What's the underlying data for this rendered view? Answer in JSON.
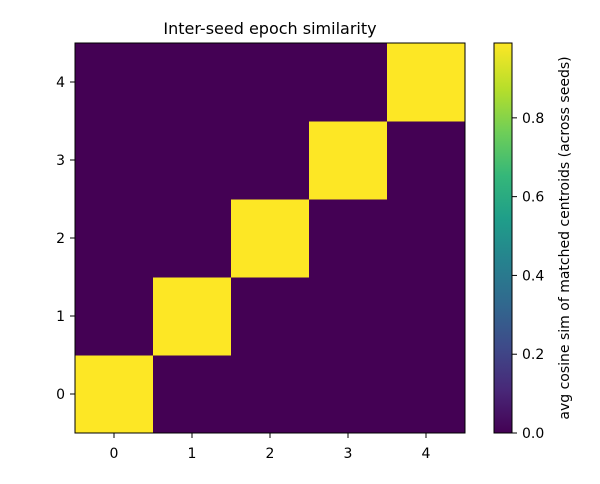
{
  "chart_data": {
    "type": "heatmap",
    "title": "Inter-seed epoch similarity",
    "xlabel": "",
    "ylabel": "",
    "x_categories": [
      "0",
      "1",
      "2",
      "3",
      "4"
    ],
    "y_categories": [
      "0",
      "1",
      "2",
      "3",
      "4"
    ],
    "values": [
      [
        1.0,
        0.0,
        0.0,
        0.0,
        0.0
      ],
      [
        0.0,
        1.0,
        0.0,
        0.0,
        0.0
      ],
      [
        0.0,
        0.0,
        1.0,
        0.0,
        0.0
      ],
      [
        0.0,
        0.0,
        0.0,
        1.0,
        0.0
      ],
      [
        0.0,
        0.0,
        0.0,
        0.0,
        1.0
      ]
    ],
    "value_range": [
      0.0,
      0.99
    ],
    "colormap": "viridis",
    "colorbar": {
      "label": "avg cosine sim of matched centroids (across seeds)",
      "ticks": [
        "0.0",
        "0.2",
        "0.4",
        "0.6",
        "0.8"
      ],
      "tick_values": [
        0.0,
        0.2,
        0.4,
        0.6,
        0.8
      ]
    },
    "grid": false,
    "legend": "none"
  }
}
